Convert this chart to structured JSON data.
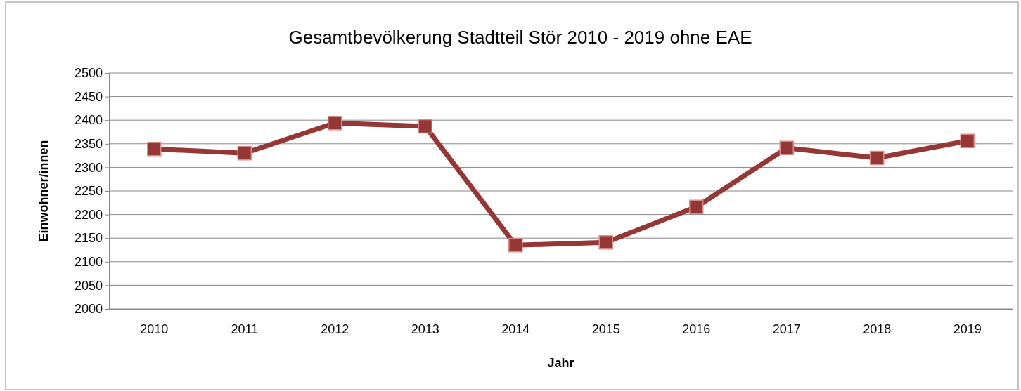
{
  "chart_data": {
    "type": "line",
    "title": "Gesamtbevölkerung Stadtteil Stör 2010 - 2019 ohne EAE",
    "xlabel": "Jahr",
    "ylabel": "Einwohner/innen",
    "categories": [
      "2010",
      "2011",
      "2012",
      "2013",
      "2014",
      "2015",
      "2016",
      "2017",
      "2018",
      "2019"
    ],
    "series": [
      {
        "color": "#953735",
        "values": [
          2339,
          2330,
          2394,
          2387,
          2135,
          2141,
          2216,
          2341,
          2320,
          2356
        ]
      }
    ],
    "ylim": [
      2000,
      2500
    ],
    "yticks": [
      2000,
      2050,
      2100,
      2150,
      2200,
      2250,
      2300,
      2350,
      2400,
      2450,
      2500
    ],
    "grid": "y",
    "marker": "square",
    "line_style": "solid"
  }
}
